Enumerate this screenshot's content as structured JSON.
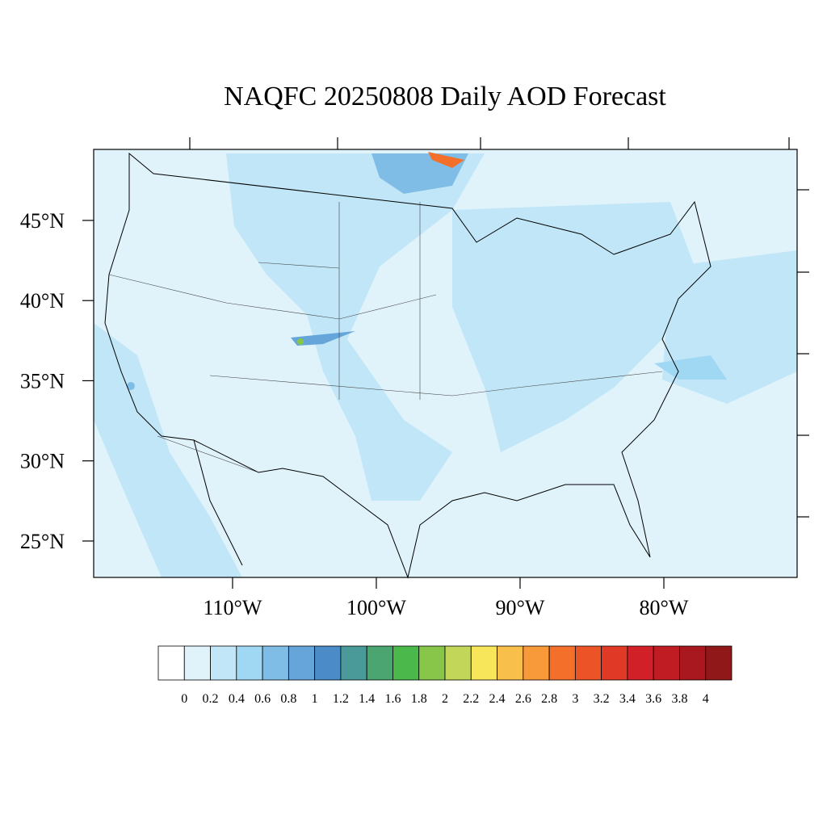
{
  "chart_data": {
    "type": "contour_map",
    "title": "NAQFC 20250808 Daily AOD Forecast",
    "xlim": [
      -119.66,
      -70.73
    ],
    "ylim": [
      22.73,
      49.43
    ],
    "xticks": [
      {
        "value": -110,
        "label": "110°W"
      },
      {
        "value": -100,
        "label": "100°W"
      },
      {
        "value": -90,
        "label": "90°W"
      },
      {
        "value": -80,
        "label": "80°W"
      }
    ],
    "yticks": [
      {
        "value": 25,
        "label": "25°N"
      },
      {
        "value": 30,
        "label": "30°N"
      },
      {
        "value": 35,
        "label": "35°N"
      },
      {
        "value": 40,
        "label": "40°N"
      },
      {
        "value": 45,
        "label": "45°N"
      }
    ],
    "colorbar": {
      "levels": [
        0,
        0.2,
        0.4,
        0.6,
        0.8,
        1,
        1.2,
        1.4,
        1.6,
        1.8,
        2,
        2.2,
        2.4,
        2.6,
        2.8,
        3,
        3.2,
        3.4,
        3.6,
        3.8,
        4
      ],
      "colors": [
        "#ffffff",
        "#e0f3fb",
        "#c0e6f7",
        "#a0d8f3",
        "#80bde6",
        "#66a5d9",
        "#4a8bc8",
        "#4a9a9a",
        "#4aa570",
        "#4ab84a",
        "#88c64a",
        "#c2d65a",
        "#f7e55a",
        "#f8bf4a",
        "#f89a3a",
        "#f4702a",
        "#ec5428",
        "#e03a26",
        "#d22028",
        "#c01c24",
        "#a8181e",
        "#901818"
      ]
    }
  }
}
